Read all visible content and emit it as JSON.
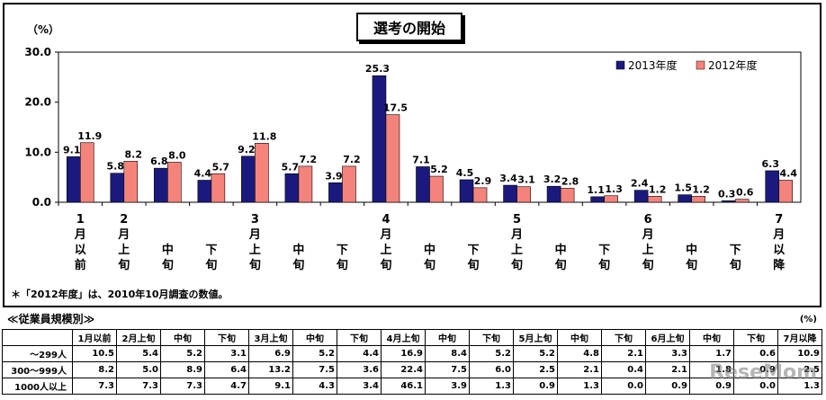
{
  "chart_data": {
    "type": "bar",
    "title": "選考の開始",
    "ylabel": "（%）",
    "ylim": [
      0,
      30
    ],
    "yticks": [
      "0.0",
      "10.0",
      "20.0",
      "30.0"
    ],
    "grid": false,
    "legend_position": "top-right",
    "categories": [
      [
        "1",
        "月",
        "以",
        "前"
      ],
      [
        "2",
        "月",
        "上",
        "旬"
      ],
      [
        "中",
        "旬"
      ],
      [
        "下",
        "旬"
      ],
      [
        "3",
        "月",
        "上",
        "旬"
      ],
      [
        "中",
        "旬"
      ],
      [
        "下",
        "旬"
      ],
      [
        "4",
        "月",
        "上",
        "旬"
      ],
      [
        "中",
        "旬"
      ],
      [
        "下",
        "旬"
      ],
      [
        "5",
        "月",
        "上",
        "旬"
      ],
      [
        "中",
        "旬"
      ],
      [
        "下",
        "旬"
      ],
      [
        "6",
        "月",
        "上",
        "旬"
      ],
      [
        "中",
        "旬"
      ],
      [
        "下",
        "旬"
      ],
      [
        "7",
        "月",
        "以",
        "降"
      ]
    ],
    "series": [
      {
        "name": "2013年度",
        "color": "#1a1a7e",
        "values": [
          9.1,
          5.8,
          6.8,
          4.4,
          9.2,
          5.7,
          3.9,
          25.3,
          7.1,
          4.5,
          3.4,
          3.2,
          1.1,
          2.4,
          1.5,
          0.3,
          6.3
        ],
        "labels": [
          "9.1",
          "5.8",
          "6.8",
          "4.4",
          "9.2",
          "5.7",
          "3.9",
          "25.3",
          "7.1",
          "4.5",
          "3.4",
          "3.2",
          "1.1",
          "2.4",
          "1.5",
          "0.3",
          "6.3"
        ]
      },
      {
        "name": "2012年度",
        "color": "#f4847b",
        "values": [
          11.9,
          8.2,
          8.0,
          5.7,
          11.8,
          7.2,
          7.2,
          17.5,
          5.2,
          2.9,
          3.1,
          2.8,
          1.3,
          1.2,
          1.2,
          0.6,
          4.4
        ],
        "labels": [
          "11.9",
          "8.2",
          "8.0",
          "5.7",
          "11.8",
          "7.2",
          "7.2",
          "17.5",
          "5.2",
          "2.9",
          "3.1",
          "2.8",
          "1.3",
          "1.2",
          "1.2",
          "0.6",
          "4.4"
        ]
      }
    ]
  },
  "note": "＊「2012年度」は、2010年10月調査の数値。",
  "table": {
    "title": "≪従業員規模別≫",
    "unit": "(%)",
    "headers": [
      "",
      "1月以前",
      "2月上旬",
      "中旬",
      "下旬",
      "3月上旬",
      "中旬",
      "下旬",
      "4月上旬",
      "中旬",
      "下旬",
      "5月上旬",
      "中旬",
      "下旬",
      "6月上旬",
      "中旬",
      "下旬",
      "7月以降"
    ],
    "rows": [
      [
        "～299人",
        "10.5",
        "5.4",
        "5.2",
        "3.1",
        "6.9",
        "5.2",
        "4.4",
        "16.9",
        "8.4",
        "5.2",
        "5.2",
        "4.8",
        "2.1",
        "3.3",
        "1.7",
        "0.6",
        "10.9"
      ],
      [
        "300～999人",
        "8.2",
        "5.0",
        "8.9",
        "6.4",
        "13.2",
        "7.5",
        "3.6",
        "22.4",
        "7.5",
        "6.0",
        "2.5",
        "2.1",
        "0.4",
        "2.1",
        "1.8",
        "0.9",
        "2.5"
      ],
      [
        "1000人以上",
        "7.3",
        "7.3",
        "7.3",
        "4.7",
        "9.1",
        "4.3",
        "3.4",
        "46.1",
        "3.9",
        "1.3",
        "0.9",
        "1.3",
        "0.0",
        "0.9",
        "0.9",
        "0.0",
        "1.3"
      ]
    ]
  },
  "watermark": "ReseMom"
}
